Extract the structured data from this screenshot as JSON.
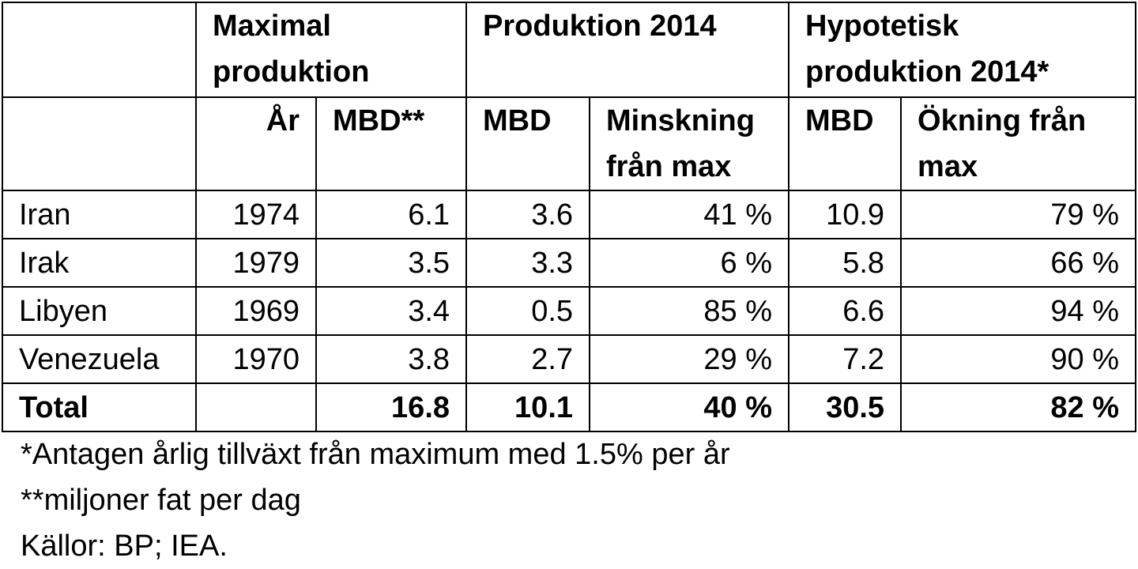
{
  "header": {
    "group_max": "Maximal produktion",
    "group_prod2014": "Produktion 2014",
    "group_hypo": "Hypotetisk produktion 2014*",
    "col_year": "År",
    "col_max_mbd": "MBD**",
    "col_prod_mbd": "MBD",
    "col_decrease": "Minskning från max",
    "col_hypo_mbd": "MBD",
    "col_increase": "Ökning från max"
  },
  "rows": [
    {
      "country": "Iran",
      "year": "1974",
      "max_mbd": "6.1",
      "prod_mbd": "3.6",
      "decrease": "41 %",
      "hypo_mbd": "10.9",
      "increase": "79 %"
    },
    {
      "country": "Irak",
      "year": "1979",
      "max_mbd": "3.5",
      "prod_mbd": "3.3",
      "decrease": "6 %",
      "hypo_mbd": "5.8",
      "increase": "66 %"
    },
    {
      "country": "Libyen",
      "year": "1969",
      "max_mbd": "3.4",
      "prod_mbd": "0.5",
      "decrease": "85 %",
      "hypo_mbd": "6.6",
      "increase": "94 %"
    },
    {
      "country": "Venezuela",
      "year": "1970",
      "max_mbd": "3.8",
      "prod_mbd": "2.7",
      "decrease": "29 %",
      "hypo_mbd": "7.2",
      "increase": "90 %"
    }
  ],
  "total": {
    "label": "Total",
    "year": "",
    "max_mbd": "16.8",
    "prod_mbd": "10.1",
    "decrease": "40 %",
    "hypo_mbd": "30.5",
    "increase": "82 %"
  },
  "notes": [
    "*Antagen årlig tillväxt från maximum med 1.5% per år",
    "**miljoner fat per dag",
    "Källor: BP; IEA."
  ]
}
